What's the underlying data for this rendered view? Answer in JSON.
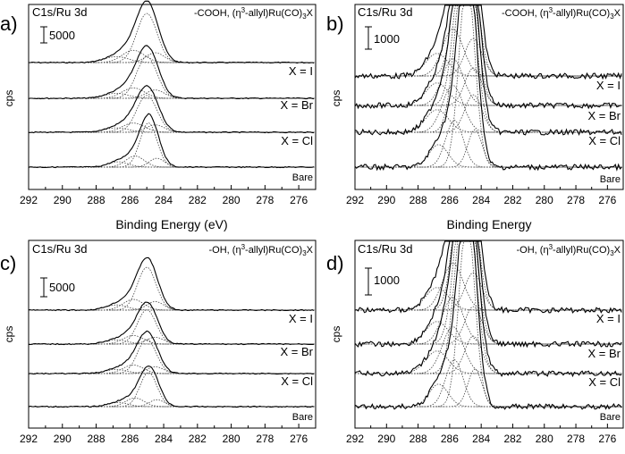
{
  "chart_data": [
    {
      "type": "line",
      "panel_label": "a)",
      "title": "C1s/Ru 3d",
      "subtitle_prefix": "-COOH, (η",
      "subtitle_sup": "3",
      "subtitle_mid": "-allyl)Ru(CO)",
      "subtitle_sub": "3",
      "subtitle_suffix": "X",
      "scale_bar_label": "5000",
      "scale_bar_value": 5000,
      "xlabel": "Binding Energy (eV)",
      "ylabel": "cps",
      "xlim": [
        292,
        275
      ],
      "x_ticks": [
        "292",
        "290",
        "288",
        "286",
        "284",
        "282",
        "280",
        "278",
        "276"
      ],
      "series": [
        {
          "name": "X = I",
          "peak_eV": 285.0,
          "sigma_eV": 0.6,
          "relative_height": 1.0
        },
        {
          "name": "X = Br",
          "peak_eV": 285.0,
          "sigma_eV": 0.6,
          "relative_height": 0.85
        },
        {
          "name": "X = Cl",
          "peak_eV": 285.0,
          "sigma_eV": 0.6,
          "relative_height": 0.75
        },
        {
          "name": "Bare",
          "peak_eV": 284.9,
          "sigma_eV": 0.5,
          "relative_height": 0.9
        }
      ]
    },
    {
      "type": "line",
      "panel_label": "b)",
      "title": "C1s/Ru 3d",
      "subtitle_prefix": "-COOH, (η",
      "subtitle_sup": "3",
      "subtitle_mid": "-allyl)Ru(CO)",
      "subtitle_sub": "3",
      "subtitle_suffix": "X",
      "scale_bar_label": "1000",
      "scale_bar_value": 1000,
      "xlabel": "Binding Energy",
      "ylabel": "cps",
      "xlim": [
        292,
        275
      ],
      "x_ticks": [
        "292",
        "290",
        "288",
        "286",
        "284",
        "282",
        "280",
        "278",
        "276"
      ],
      "series": [
        {
          "name": "X = I",
          "peak_eV": 285.0,
          "sigma_eV": 0.6,
          "relative_height": 1.0
        },
        {
          "name": "X = Br",
          "peak_eV": 285.0,
          "sigma_eV": 0.6,
          "relative_height": 1.0
        },
        {
          "name": "X = Cl",
          "peak_eV": 285.0,
          "sigma_eV": 0.6,
          "relative_height": 1.0
        },
        {
          "name": "Bare",
          "peak_eV": 284.9,
          "sigma_eV": 0.5,
          "relative_height": 1.0
        }
      ]
    },
    {
      "type": "line",
      "panel_label": "c)",
      "title": "C1s/Ru 3d",
      "subtitle_prefix": "-OH, (η",
      "subtitle_sup": "3",
      "subtitle_mid": "-allyl)Ru(CO)",
      "subtitle_sub": "3",
      "subtitle_suffix": "X",
      "scale_bar_label": "5000",
      "scale_bar_value": 5000,
      "xlabel": "",
      "ylabel": "cps",
      "xlim": [
        292,
        275
      ],
      "x_ticks": [
        "292",
        "290",
        "288",
        "286",
        "284",
        "282",
        "280",
        "278",
        "276"
      ],
      "series": [
        {
          "name": "X = I",
          "peak_eV": 285.0,
          "sigma_eV": 0.55,
          "relative_height": 1.0
        },
        {
          "name": "X = Br",
          "peak_eV": 285.0,
          "sigma_eV": 0.55,
          "relative_height": 0.8
        },
        {
          "name": "X = Cl",
          "peak_eV": 285.0,
          "sigma_eV": 0.55,
          "relative_height": 0.8
        },
        {
          "name": "Bare",
          "peak_eV": 284.9,
          "sigma_eV": 0.5,
          "relative_height": 0.8
        }
      ]
    },
    {
      "type": "line",
      "panel_label": "d)",
      "title": "C1s/Ru 3d",
      "subtitle_prefix": "-OH, (η",
      "subtitle_sup": "3",
      "subtitle_mid": "-allyl)Ru(CO)",
      "subtitle_sub": "3",
      "subtitle_suffix": "X",
      "scale_bar_label": "1000",
      "scale_bar_value": 1000,
      "xlabel": "",
      "ylabel": "cps",
      "xlim": [
        292,
        275
      ],
      "x_ticks": [
        "292",
        "290",
        "288",
        "286",
        "284",
        "282",
        "280",
        "278",
        "276"
      ],
      "series": [
        {
          "name": "X = I",
          "peak_eV": 285.0,
          "sigma_eV": 0.6,
          "relative_height": 1.0
        },
        {
          "name": "X = Br",
          "peak_eV": 285.0,
          "sigma_eV": 0.6,
          "relative_height": 1.0
        },
        {
          "name": "X = Cl",
          "peak_eV": 285.0,
          "sigma_eV": 0.6,
          "relative_height": 1.0
        },
        {
          "name": "Bare",
          "peak_eV": 284.9,
          "sigma_eV": 0.5,
          "relative_height": 1.0
        }
      ]
    }
  ]
}
